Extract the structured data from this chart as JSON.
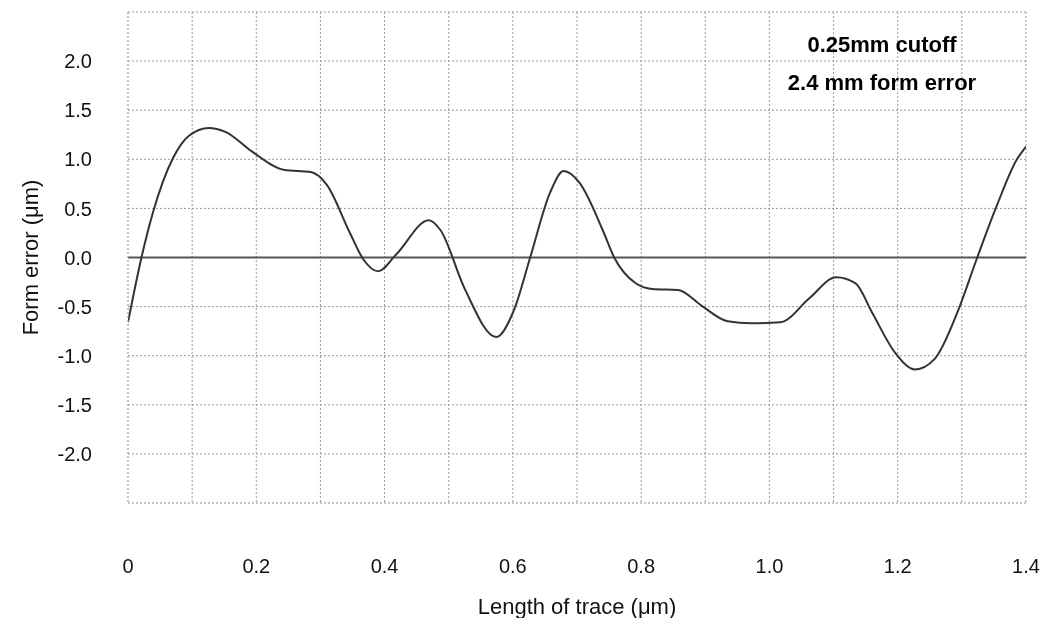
{
  "chart_data": {
    "type": "line",
    "xlabel": "Length of trace (μm)",
    "ylabel": "Form error (μm)",
    "annotations": [
      "0.25mm cutoff",
      "2.4 mm form error"
    ],
    "x": [
      0,
      0.021,
      0.039,
      0.07,
      0.095,
      0.126,
      0.152,
      0.193,
      0.244,
      0.285,
      0.31,
      0.346,
      0.367,
      0.39,
      0.418,
      0.469,
      0.487,
      0.525,
      0.574,
      0.602,
      0.627,
      0.658,
      0.679,
      0.704,
      0.74,
      0.758,
      0.791,
      0.817,
      0.858,
      0.894,
      0.935,
      0.971,
      1.017,
      1.063,
      1.104,
      1.134,
      1.16,
      1.196,
      1.227,
      1.258,
      1.293,
      1.324,
      1.354,
      1.385,
      1.4
    ],
    "series": [
      {
        "color": "#333333",
        "values": [
          -0.66,
          0,
          0.46,
          1.01,
          1.24,
          1.32,
          1.28,
          1.08,
          0.89,
          0.87,
          0.74,
          0.25,
          -0.02,
          -0.14,
          0.03,
          0.38,
          0.28,
          -0.32,
          -0.81,
          -0.53,
          0,
          0.66,
          0.88,
          0.76,
          0.28,
          0,
          -0.26,
          -0.32,
          -0.33,
          -0.49,
          -0.65,
          -0.67,
          -0.66,
          -0.41,
          -0.2,
          -0.26,
          -0.56,
          -0.97,
          -1.14,
          -1.03,
          -0.56,
          0,
          0.52,
          0.99,
          1.13
        ]
      }
    ],
    "xlim": [
      0,
      1.4
    ],
    "xticks": [
      0,
      {
        "value": 0.1,
        "label": null
      },
      0.2,
      {
        "value": 0.3,
        "label": null
      },
      0.4,
      {
        "value": 0.5,
        "label": null
      },
      0.6,
      {
        "value": 0.7,
        "label": null
      },
      0.8,
      {
        "value": 0.9,
        "label": null
      },
      {
        "value": 1,
        "label": "1.0"
      },
      {
        "value": 1.1,
        "label": null
      },
      1.2,
      {
        "value": 1.3,
        "label": null
      },
      1.4
    ],
    "ylim": [
      -2.5,
      2.5
    ],
    "yticks": [
      {
        "value": -2.5,
        "label": null
      },
      {
        "value": -2,
        "label": "-2.0"
      },
      -1.5,
      {
        "value": -1,
        "label": "-1.0"
      },
      -0.5,
      {
        "value": 0,
        "label": "0.0"
      },
      0.5,
      {
        "value": 1,
        "label": "1.0"
      },
      1.5,
      {
        "value": 2,
        "label": "2.0"
      },
      {
        "value": 2.5,
        "label": null
      }
    ],
    "ref_lines": [
      {
        "axis": "y",
        "value": 0,
        "color": "#555555",
        "line_style": "solid"
      }
    ],
    "grid": true,
    "legend": false,
    "marker": "none",
    "line_style": "solid"
  }
}
